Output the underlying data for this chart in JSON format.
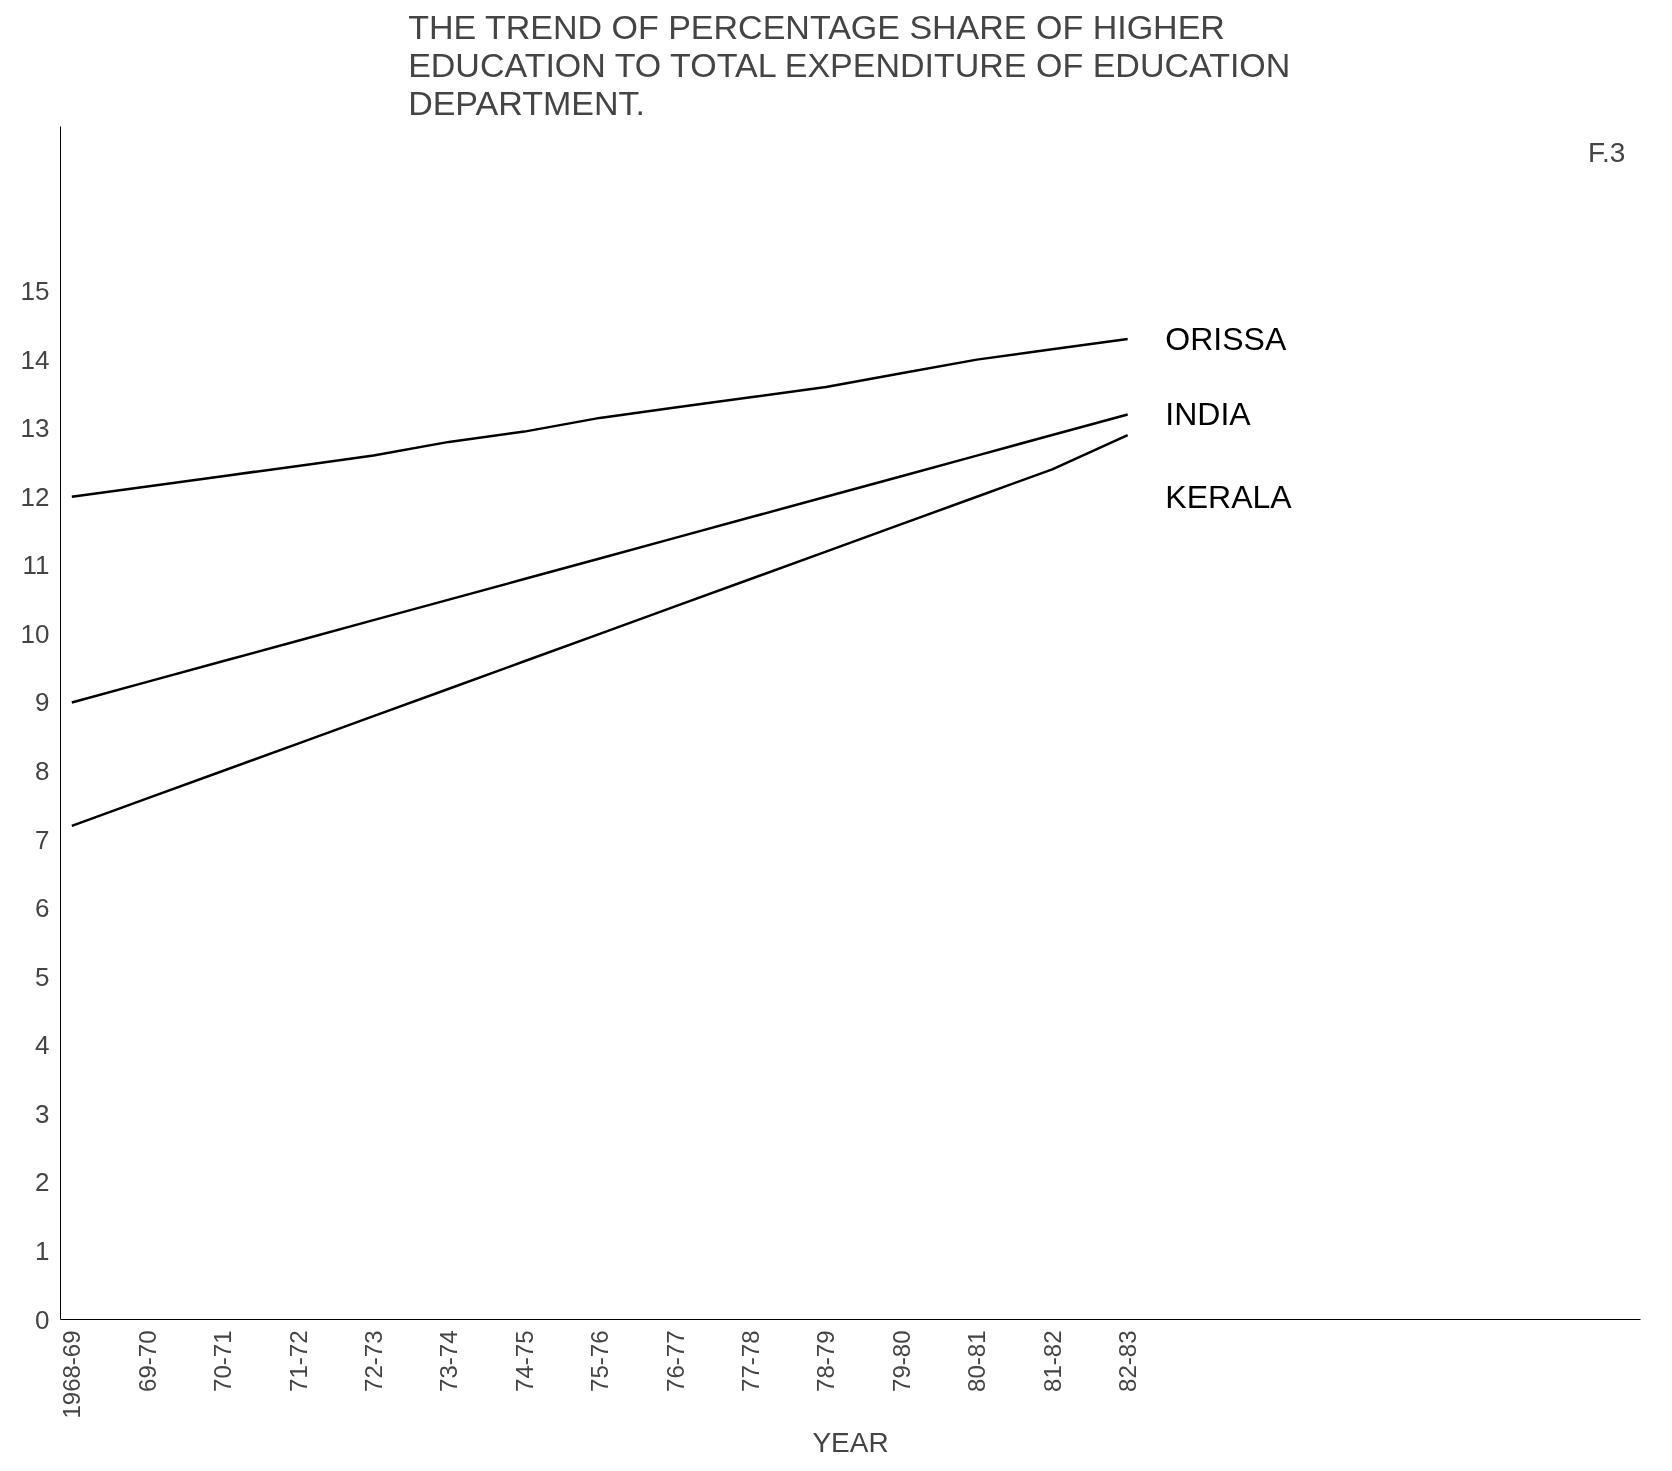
{
  "chart_data": {
    "type": "line",
    "title": "THE TREND OF PERCENTAGE SHARE OF HIGHER\nEDUCATION TO TOTAL EXPENDITURE OF EDUCATION\nDEPARTMENT.",
    "xlabel": "YEAR",
    "categories": [
      "1968-69",
      "69-70",
      "70-71",
      "71-72",
      "72-73",
      "73-74",
      "74-75",
      "75-76",
      "76-77",
      "77-78",
      "78-79",
      "79-80",
      "80-81",
      "81-82",
      "82-83"
    ],
    "series": [
      {
        "name": "ORISSA",
        "color": "#000000",
        "values": [
          12.0,
          12.15,
          12.3,
          12.45,
          12.6,
          12.8,
          12.95,
          13.15,
          13.3,
          13.45,
          13.6,
          13.8,
          14.0,
          14.15,
          14.3
        ]
      },
      {
        "name": "INDIA",
        "color": "#000000",
        "values": [
          9.0,
          9.3,
          9.6,
          9.9,
          10.2,
          10.5,
          10.8,
          11.1,
          11.4,
          11.7,
          12.0,
          12.3,
          12.6,
          12.9,
          13.2
        ]
      },
      {
        "name": "KERALA",
        "color": "#000000",
        "values": [
          7.2,
          7.6,
          8.0,
          8.4,
          8.8,
          9.2,
          9.6,
          10.0,
          10.4,
          10.8,
          11.2,
          11.6,
          12.0,
          12.4,
          12.9
        ]
      }
    ],
    "ylim": [
      0,
      17.4
    ],
    "yticks": [
      0,
      1,
      2,
      3,
      4,
      5,
      6,
      7,
      8,
      9,
      10,
      11,
      12,
      13,
      14,
      15
    ],
    "grid": false,
    "marker": "none",
    "line_style": "solid",
    "annotations": [
      "F.3"
    ]
  }
}
